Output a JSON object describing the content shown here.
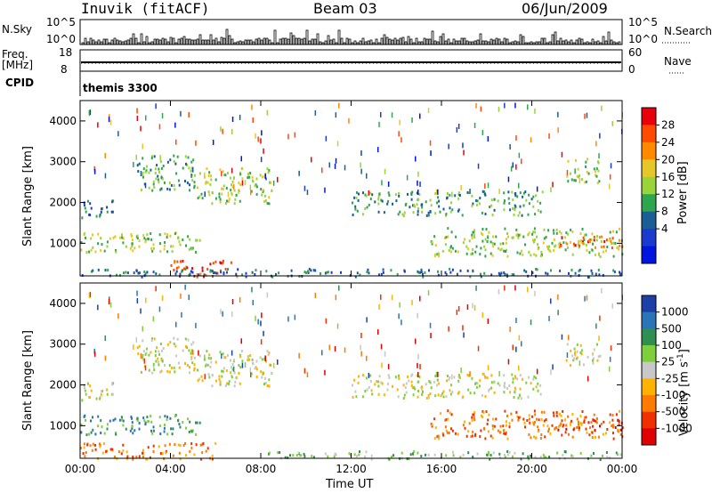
{
  "header": {
    "radar": "Inuvik (fitACF)",
    "beam": "Beam 03",
    "date": "06/Jun/2009"
  },
  "top_panels": {
    "nsky_label": "N.Sky",
    "nsky_ticks": [
      "10^5",
      "10^0"
    ],
    "nsearch_label": "N.Search",
    "nsearch_ticks": [
      "10^5",
      "10^0"
    ],
    "freq_label": "Freq.",
    "freq_unit": "[MHz]",
    "freq_ticks": [
      "18",
      "8"
    ],
    "nave_label": "Nave",
    "nave_ticks": [
      "60",
      "0"
    ],
    "cpid_label": "CPID",
    "cpid_value": "themis 3300"
  },
  "chart_data": [
    {
      "type": "heatmap",
      "name": "power",
      "ylabel": "Slant Range [km]",
      "xlabel": "Time UT",
      "ylim": [
        200,
        4500
      ],
      "y_ticks": [
        "1000",
        "2000",
        "3000",
        "4000"
      ],
      "x_ticks": [
        "00:00",
        "04:00",
        "08:00",
        "12:00",
        "16:00",
        "20:00",
        "00:00"
      ],
      "colorbar_label": "Power [dB]",
      "colorbar_ticks": [
        "28",
        "24",
        "20",
        "16",
        "12",
        "8",
        "4"
      ],
      "colorbar_colors": [
        "#e8000b",
        "#ff4a00",
        "#ff8a00",
        "#e5c72a",
        "#98d43a",
        "#2fa64d",
        "#1a5e95",
        "#1b3bd0",
        "#0015e0"
      ],
      "echo_regions": [
        {
          "t_start": 0.0,
          "t_end": 1.5,
          "r_start": 1650,
          "r_end": 2100,
          "level": 6
        },
        {
          "t_start": 0.0,
          "t_end": 5.5,
          "r_start": 800,
          "r_end": 1300,
          "level": 4
        },
        {
          "t_start": 2.5,
          "t_end": 5.0,
          "r_start": 2300,
          "r_end": 3200,
          "level": 5
        },
        {
          "t_start": 5.0,
          "t_end": 8.5,
          "r_start": 2000,
          "r_end": 2900,
          "level": 4
        },
        {
          "t_start": 4.0,
          "t_end": 7.0,
          "r_start": 200,
          "r_end": 600,
          "level": 1
        },
        {
          "t_start": 12.0,
          "t_end": 20.5,
          "r_start": 1700,
          "r_end": 2300,
          "level": 5
        },
        {
          "t_start": 15.5,
          "t_end": 24.0,
          "r_start": 700,
          "r_end": 1400,
          "level": 4
        },
        {
          "t_start": 21.0,
          "t_end": 24.0,
          "r_start": 900,
          "r_end": 1200,
          "level": 1
        },
        {
          "t_start": 21.5,
          "t_end": 23.0,
          "r_start": 2500,
          "r_end": 3100,
          "level": 4
        },
        {
          "t_start": 0.0,
          "t_end": 24.0,
          "r_start": 200,
          "r_end": 400,
          "level": 6
        }
      ]
    },
    {
      "type": "heatmap",
      "name": "velocity",
      "ylabel": "Slant Range [km]",
      "xlabel": "Time UT",
      "ylim": [
        200,
        4500
      ],
      "y_ticks": [
        "1000",
        "2000",
        "3000",
        "4000"
      ],
      "x_ticks": [
        "00:00",
        "04:00",
        "08:00",
        "12:00",
        "16:00",
        "20:00",
        "00:00"
      ],
      "colorbar_label": "Velocity [m s",
      "colorbar_label_sup": "-1",
      "colorbar_label_end": "]",
      "colorbar_ticks": [
        "1000",
        "500",
        "100",
        "25",
        "-25",
        "-100",
        "-500",
        "-1000"
      ],
      "colorbar_colors": [
        "#1c3fa8",
        "#2a74b8",
        "#2f8f4e",
        "#7fcf3c",
        "#c8c8c8",
        "#ffb300",
        "#ff7a00",
        "#f03000",
        "#e00000"
      ],
      "echo_regions": [
        {
          "t_start": 0.0,
          "t_end": 1.5,
          "r_start": 1650,
          "r_end": 2100,
          "level": 4
        },
        {
          "t_start": 0.0,
          "t_end": 5.5,
          "r_start": 800,
          "r_end": 1300,
          "level": 2
        },
        {
          "t_start": 2.5,
          "t_end": 5.0,
          "r_start": 2300,
          "r_end": 3200,
          "level": 4
        },
        {
          "t_start": 5.0,
          "t_end": 8.5,
          "r_start": 2000,
          "r_end": 2900,
          "level": 4
        },
        {
          "t_start": 0.0,
          "t_end": 6.0,
          "r_start": 200,
          "r_end": 600,
          "level": 6
        },
        {
          "t_start": 12.0,
          "t_end": 20.5,
          "r_start": 1700,
          "r_end": 2300,
          "level": 4
        },
        {
          "t_start": 15.5,
          "t_end": 24.0,
          "r_start": 700,
          "r_end": 1400,
          "level": 6
        },
        {
          "t_start": 21.0,
          "t_end": 24.0,
          "r_start": 900,
          "r_end": 1200,
          "level": 7
        },
        {
          "t_start": 21.5,
          "t_end": 23.0,
          "r_start": 2500,
          "r_end": 3100,
          "level": 4
        },
        {
          "t_start": 8.0,
          "t_end": 24.0,
          "r_start": 200,
          "r_end": 400,
          "level": 3
        }
      ]
    }
  ]
}
